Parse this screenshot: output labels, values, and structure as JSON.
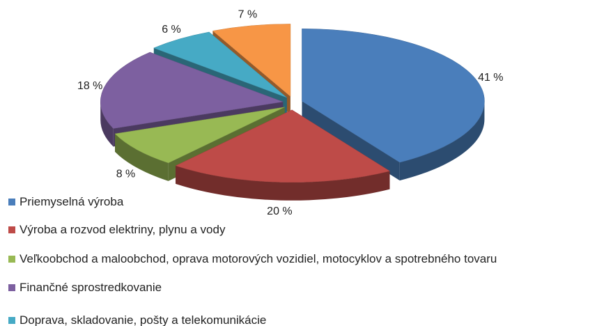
{
  "chart_data": {
    "type": "pie3d",
    "categories": [
      "Priemyselná výroba",
      "Výroba a rozvod elektriny, plynu a vody",
      "Veľkoobchod a maloobchod, oprava motorových vozidiel, motocyklov a spotrebného tovaru",
      "Finančné sprostredkovanie",
      "Doprava, skladovanie, pošty a telekomunikácie",
      null
    ],
    "values": [
      41,
      20,
      8,
      18,
      6,
      7
    ],
    "value_labels": [
      "41 %",
      "20 %",
      "8 %",
      "18 %",
      "6 %",
      "7 %"
    ],
    "colors": [
      "#4a7ebb",
      "#be4b48",
      "#98b954",
      "#7d60a0",
      "#46aac5",
      "#f79646"
    ]
  }
}
